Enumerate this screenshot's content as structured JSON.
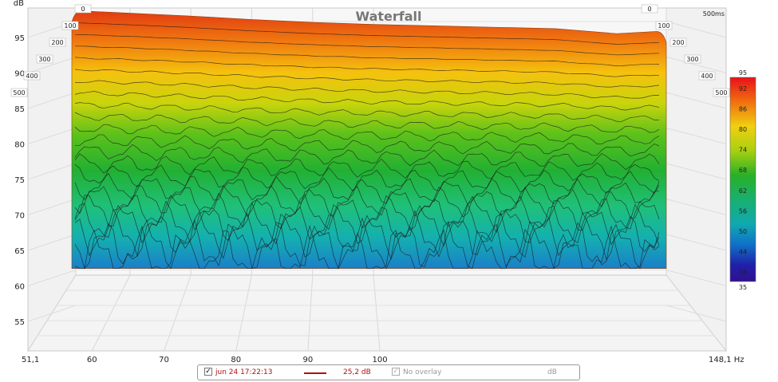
{
  "chart_data": {
    "type": "area",
    "title": "Waterfall",
    "ylabel": "dB",
    "y_ticks": [
      95,
      90,
      85,
      80,
      75,
      70,
      65,
      60,
      55
    ],
    "x_ticks": [
      "51,1",
      "60",
      "70",
      "80",
      "90",
      "100",
      "148,1 Hz"
    ],
    "x_tick_values": [
      51.1,
      60,
      70,
      80,
      90,
      100,
      148.1
    ],
    "xlim": [
      51.1,
      148.1
    ],
    "ylim": [
      52,
      98
    ],
    "time_labels_left": [
      "0",
      "100",
      "200",
      "300",
      "400",
      "500"
    ],
    "time_labels_right": [
      "0",
      "100",
      "200",
      "300",
      "400",
      "500"
    ],
    "time_unit_label": "500ms",
    "colorbar": {
      "ticks": [
        "95",
        "92",
        "86",
        "80",
        "74",
        "68",
        "62",
        "56",
        "50",
        "44",
        "38",
        "35"
      ],
      "range": [
        35,
        95
      ]
    },
    "front_envelope_x": [
      51.1,
      60,
      70,
      80,
      90,
      100,
      110,
      120,
      130,
      140,
      148.1
    ],
    "front_envelope_y": [
      96.5,
      96.2,
      95.8,
      95.3,
      94.9,
      94.6,
      94.4,
      94.2,
      94.0,
      93.3,
      93.6
    ],
    "floor_level_db": 60.2,
    "contour_count": 22,
    "grid": true,
    "legend_placement": "bottom"
  },
  "legend": {
    "measurement": "jun 24 17:22:13",
    "offset": "25,2 dB",
    "overlay": "No overlay",
    "unit": "dB",
    "trace_color": "#b01010"
  }
}
